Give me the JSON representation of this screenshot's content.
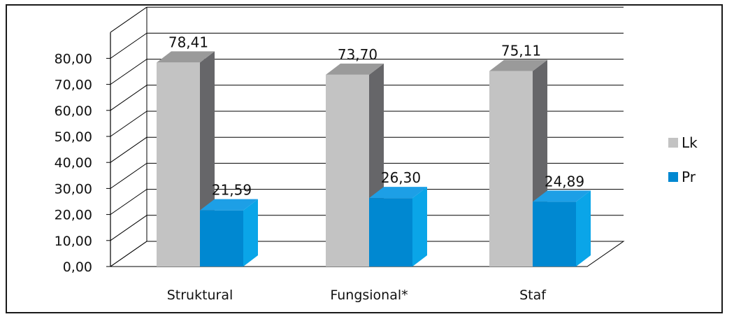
{
  "chart_data": {
    "type": "bar",
    "categories": [
      "Struktural",
      "Fungsional*",
      "Staf"
    ],
    "series": [
      {
        "name": "Lk",
        "values": [
          78.41,
          73.7,
          75.11
        ],
        "data_labels": [
          "78,41",
          "73,70",
          "75,11"
        ]
      },
      {
        "name": "Pr",
        "values": [
          21.59,
          26.3,
          24.89
        ],
        "data_labels": [
          "21,59",
          "26,30",
          "24,89"
        ]
      }
    ],
    "y_ticks": [
      "0,00",
      "10,00",
      "20,00",
      "30,00",
      "40,00",
      "50,00",
      "60,00",
      "70,00",
      "80,00"
    ],
    "ylim": [
      0,
      90
    ],
    "grid": true,
    "three_d": true,
    "legend_position": "right",
    "colors": {
      "Lk": {
        "front": "#c3c3c3",
        "side": "#666669",
        "top": "#9a9a9a"
      },
      "Pr": {
        "front": "#0088d1",
        "side": "#0aa5e8",
        "top": "#1d9fe6"
      },
      "grid": "#000000",
      "axis": "#000000"
    }
  }
}
